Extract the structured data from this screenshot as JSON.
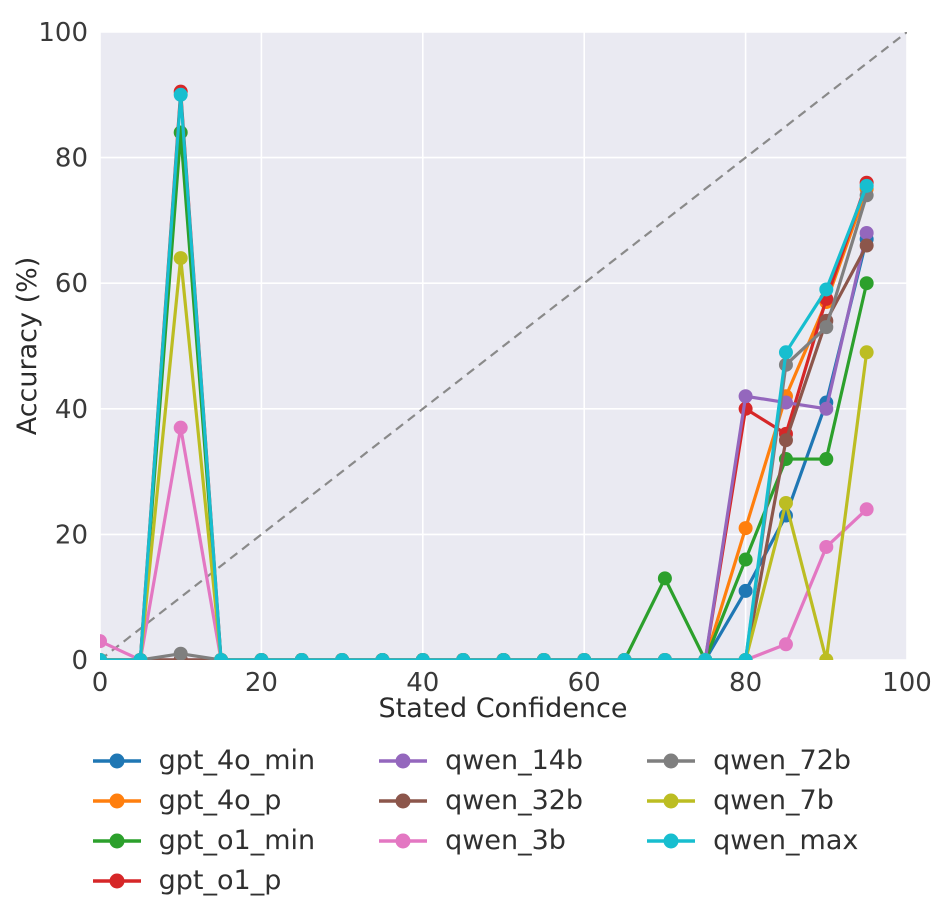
{
  "chart_data": {
    "type": "line",
    "title": "",
    "xlabel": "Stated Confidence",
    "ylabel": "Accuracy (%)",
    "xlim": [
      0,
      100
    ],
    "ylim": [
      0,
      100
    ],
    "xticks": [
      0,
      20,
      40,
      60,
      80,
      100
    ],
    "yticks": [
      0,
      20,
      40,
      60,
      80,
      100
    ],
    "grid": true,
    "plot_bg": "#eaeaf2",
    "grid_color": "#ffffff",
    "reference_line": {
      "type": "diagonal",
      "from": [
        0,
        0
      ],
      "to": [
        100,
        100
      ],
      "style": "dashed",
      "color": "#8a8a8a"
    },
    "x": [
      0,
      5,
      10,
      15,
      20,
      25,
      30,
      35,
      40,
      45,
      50,
      55,
      60,
      65,
      70,
      75,
      80,
      85,
      90,
      95
    ],
    "series": [
      {
        "name": "gpt_4o_min",
        "color": "#1f77b4",
        "values": [
          0,
          0,
          0,
          0,
          0,
          0,
          0,
          0,
          0,
          0,
          0,
          0,
          0,
          0,
          0,
          0,
          11,
          23,
          41,
          67
        ]
      },
      {
        "name": "gpt_4o_p",
        "color": "#ff7f0e",
        "values": [
          0,
          0,
          0,
          0,
          0,
          0,
          0,
          0,
          0,
          0,
          0,
          0,
          0,
          0,
          0,
          0,
          21,
          42,
          57,
          75
        ]
      },
      {
        "name": "gpt_o1_min",
        "color": "#2ca02c",
        "values": [
          0,
          0,
          84,
          0,
          0,
          0,
          0,
          0,
          0,
          0,
          0,
          0,
          0,
          0,
          13,
          0,
          16,
          32,
          32,
          60
        ]
      },
      {
        "name": "gpt_o1_p",
        "color": "#d62728",
        "values": [
          0,
          0,
          90.5,
          0,
          0,
          0,
          0,
          0,
          0,
          0,
          0,
          0,
          0,
          0,
          0,
          0,
          40,
          36,
          57.5,
          76
        ]
      },
      {
        "name": "qwen_14b",
        "color": "#9467bd",
        "values": [
          0,
          0,
          0,
          0,
          0,
          0,
          0,
          0,
          0,
          0,
          0,
          0,
          0,
          0,
          0,
          0,
          42,
          41,
          40,
          68
        ]
      },
      {
        "name": "qwen_32b",
        "color": "#8c564b",
        "values": [
          0,
          0,
          0,
          0,
          0,
          0,
          0,
          0,
          0,
          0,
          0,
          0,
          0,
          0,
          0,
          0,
          0,
          35,
          54,
          66
        ]
      },
      {
        "name": "qwen_3b",
        "color": "#e377c2",
        "values": [
          3,
          0,
          37,
          0,
          0,
          0,
          0,
          0,
          0,
          0,
          0,
          0,
          0,
          0,
          0,
          0,
          0,
          2.5,
          18,
          24
        ]
      },
      {
        "name": "qwen_72b",
        "color": "#7f7f7f",
        "values": [
          0,
          0,
          1,
          0,
          0,
          0,
          0,
          0,
          0,
          0,
          0,
          0,
          0,
          0,
          0,
          0,
          0,
          47,
          53,
          74
        ]
      },
      {
        "name": "qwen_7b",
        "color": "#bcbd22",
        "values": [
          0,
          0,
          64,
          0,
          0,
          0,
          0,
          0,
          0,
          0,
          0,
          0,
          0,
          0,
          0,
          0,
          0,
          25,
          0,
          49
        ]
      },
      {
        "name": "qwen_max",
        "color": "#17becf",
        "values": [
          0,
          0,
          90,
          0,
          0,
          0,
          0,
          0,
          0,
          0,
          0,
          0,
          0,
          0,
          0,
          0,
          0,
          49,
          59,
          75.5
        ]
      }
    ],
    "legend": {
      "position": "bottom",
      "ncol": 3,
      "order": "column-major"
    }
  }
}
